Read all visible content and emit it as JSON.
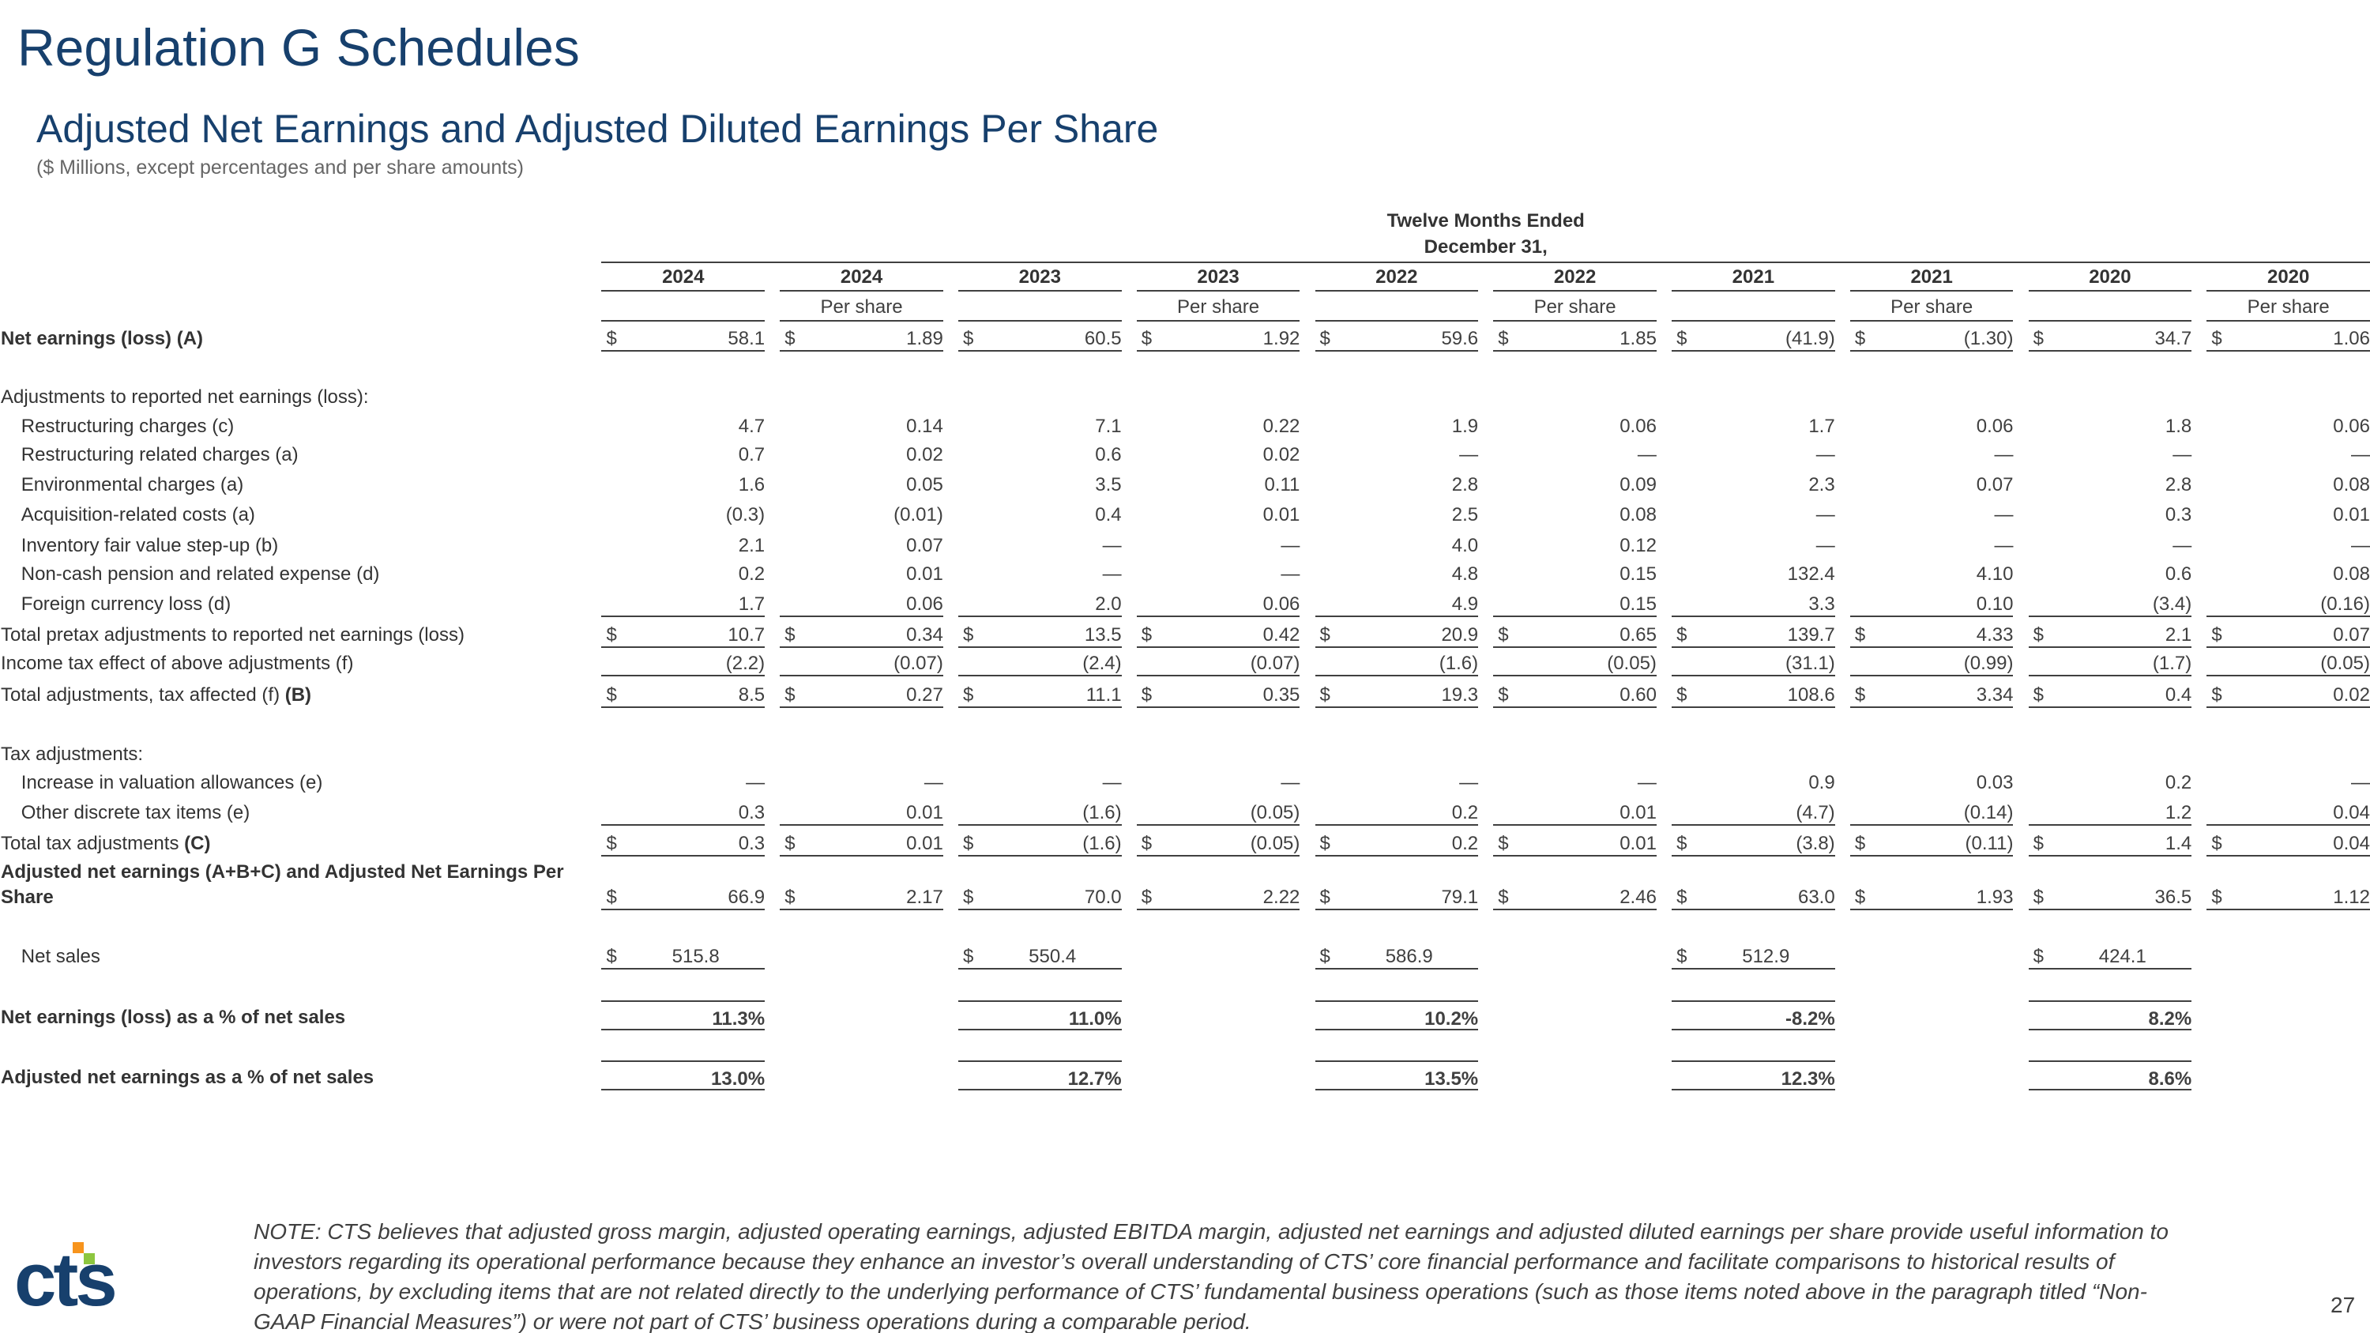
{
  "header": {
    "title": "Regulation G Schedules",
    "subtitle": "Adjusted Net Earnings and Adjusted Diluted Earnings Per Share",
    "units": "($ Millions, except percentages and per share amounts)"
  },
  "table": {
    "period": [
      "Twelve Months Ended",
      "December 31,"
    ],
    "columns": [
      {
        "year": "2024",
        "sub": null
      },
      {
        "year": "2024",
        "sub": "Per share"
      },
      {
        "year": "2023",
        "sub": null
      },
      {
        "year": "2023",
        "sub": "Per share"
      },
      {
        "year": "2022",
        "sub": null
      },
      {
        "year": "2022",
        "sub": "Per share"
      },
      {
        "year": "2021",
        "sub": null
      },
      {
        "year": "2021",
        "sub": "Per share"
      },
      {
        "year": "2020",
        "sub": null
      },
      {
        "year": "2020",
        "sub": "Per share"
      }
    ],
    "currency": "$",
    "rows": [
      {
        "label": "Net earnings (loss) (A)",
        "bold": true,
        "dollar": true,
        "cells": [
          "58.1",
          "1.89",
          "60.5",
          "1.92",
          "59.6",
          "1.85",
          "(41.9)",
          "(1.30)",
          "34.7",
          "1.06"
        ]
      },
      {
        "label": "Adjustments to reported net earnings (loss):"
      },
      {
        "label": "Restructuring charges (c)",
        "indent": true,
        "cells": [
          "4.7",
          "0.14",
          "7.1",
          "0.22",
          "1.9",
          "0.06",
          "1.7",
          "0.06",
          "1.8",
          "0.06"
        ]
      },
      {
        "label": "Restructuring related charges (a)",
        "indent": true,
        "cells": [
          "0.7",
          "0.02",
          "0.6",
          "0.02",
          "—",
          "—",
          "—",
          "—",
          "—",
          "—"
        ]
      },
      {
        "label": "Environmental charges (a)",
        "indent": true,
        "cells": [
          "1.6",
          "0.05",
          "3.5",
          "0.11",
          "2.8",
          "0.09",
          "2.3",
          "0.07",
          "2.8",
          "0.08"
        ]
      },
      {
        "label": "Acquisition-related costs (a)",
        "indent": true,
        "cells": [
          "(0.3)",
          "(0.01)",
          "0.4",
          "0.01",
          "2.5",
          "0.08",
          "—",
          "—",
          "0.3",
          "0.01"
        ]
      },
      {
        "label": "Inventory fair value step-up (b)",
        "indent": true,
        "cells": [
          "2.1",
          "0.07",
          "—",
          "—",
          "4.0",
          "0.12",
          "—",
          "—",
          "—",
          "—"
        ]
      },
      {
        "label": "Non-cash pension and related expense (d)",
        "indent": true,
        "cells": [
          "0.2",
          "0.01",
          "—",
          "—",
          "4.8",
          "0.15",
          "132.4",
          "4.10",
          "0.6",
          "0.08"
        ]
      },
      {
        "label": "Foreign currency loss (d)",
        "indent": true,
        "cells": [
          "1.7",
          "0.06",
          "2.0",
          "0.06",
          "4.9",
          "0.15",
          "3.3",
          "0.10",
          "(3.4)",
          "(0.16)"
        ]
      },
      {
        "label": "Total pretax adjustments to reported net earnings (loss)",
        "dollar": true,
        "cells": [
          "10.7",
          "0.34",
          "13.5",
          "0.42",
          "20.9",
          "0.65",
          "139.7",
          "4.33",
          "2.1",
          "0.07"
        ]
      },
      {
        "label": "Income tax effect of above adjustments (f)",
        "cells": [
          "(2.2)",
          "(0.07)",
          "(2.4)",
          "(0.07)",
          "(1.6)",
          "(0.05)",
          "(31.1)",
          "(0.99)",
          "(1.7)",
          "(0.05)"
        ]
      },
      {
        "label": "Total adjustments, tax affected (f)",
        "label_bold": "(B)",
        "dollar": true,
        "cells": [
          "8.5",
          "0.27",
          "11.1",
          "0.35",
          "19.3",
          "0.60",
          "108.6",
          "3.34",
          "0.4",
          "0.02"
        ]
      },
      {
        "label": "Tax adjustments:"
      },
      {
        "label": "Increase in valuation allowances (e)",
        "indent": true,
        "cells": [
          "—",
          "—",
          "—",
          "—",
          "—",
          "—",
          "0.9",
          "0.03",
          "0.2",
          "—"
        ]
      },
      {
        "label": "Other discrete tax items (e)",
        "indent": true,
        "cells": [
          "0.3",
          "0.01",
          "(1.6)",
          "(0.05)",
          "0.2",
          "0.01",
          "(4.7)",
          "(0.14)",
          "1.2",
          "0.04"
        ]
      },
      {
        "label": "Total tax adjustments",
        "label_bold": "(C)",
        "dollar": true,
        "cells": [
          "0.3",
          "0.01",
          "(1.6)",
          "(0.05)",
          "0.2",
          "0.01",
          "(3.8)",
          "(0.11)",
          "1.4",
          "0.04"
        ]
      },
      {
        "label": "Adjusted net earnings (A+B+C) and Adjusted Net Earnings Per Share",
        "bold": true,
        "dollar": true,
        "cells": [
          "66.9",
          "2.17",
          "70.0",
          "2.22",
          "79.1",
          "2.46",
          "63.0",
          "1.93",
          "36.5",
          "1.12"
        ]
      },
      {
        "label": "Net sales",
        "indent": true,
        "dollar": true,
        "cells": [
          "515.8",
          null,
          "550.4",
          null,
          "586.9",
          null,
          "512.9",
          null,
          "424.1",
          null
        ]
      },
      {
        "label": "Net earnings (loss) as a % of net sales",
        "bold": true,
        "cells": [
          "11.3%",
          null,
          "11.0%",
          null,
          "10.2%",
          null,
          "-8.2%",
          null,
          "8.2%",
          null
        ]
      },
      {
        "label": "Adjusted net earnings as a % of net sales",
        "bold": true,
        "cells": [
          "13.0%",
          null,
          "12.7%",
          null,
          "13.5%",
          null,
          "12.3%",
          null,
          "8.6%",
          null
        ]
      }
    ]
  },
  "note": "NOTE: CTS believes that adjusted gross margin, adjusted operating earnings, adjusted EBITDA margin, adjusted net earnings and adjusted diluted earnings per share provide useful information to investors regarding its operational performance because they enhance an investor’s overall understanding of CTS’ core financial performance and facilitate comparisons to historical results of operations, by excluding items that are not related directly to the underlying performance of CTS’ fundamental business operations (such as those items noted above in the paragraph titled “Non-GAAP Financial Measures”) or were not part of CTS’ business operations during a comparable period.",
  "logo": "cts",
  "page_number": "27"
}
